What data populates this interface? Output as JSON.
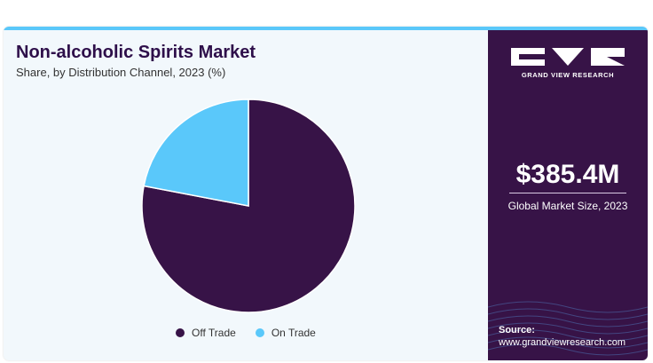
{
  "header": {
    "title": "Non-alcoholic Spirits Market",
    "subtitle": "Share, by Distribution Channel, 2023 (%)"
  },
  "chart_data": {
    "type": "pie",
    "title": "Non-alcoholic Spirits Market",
    "subtitle": "Share, by Distribution Channel, 2023 (%)",
    "categories": [
      "Off Trade",
      "On Trade"
    ],
    "values": [
      78,
      22
    ],
    "colors": [
      "#371347",
      "#5ac8fa"
    ],
    "start_angle_deg": 0,
    "direction": "clockwise",
    "legend_position": "bottom"
  },
  "sidebar": {
    "brand": "GRAND VIEW RESEARCH",
    "logo_icon": "gvr-logo-icon",
    "market_size": "$385.4M",
    "market_size_label": "Global Market Size, 2023",
    "source_label": "Source:",
    "source_url": "www.grandviewresearch.com"
  },
  "colors": {
    "accent": "#5ac8fa",
    "brand_dark": "#371347",
    "title": "#2e0f4a",
    "panel_bg": "#f2f8fc"
  }
}
